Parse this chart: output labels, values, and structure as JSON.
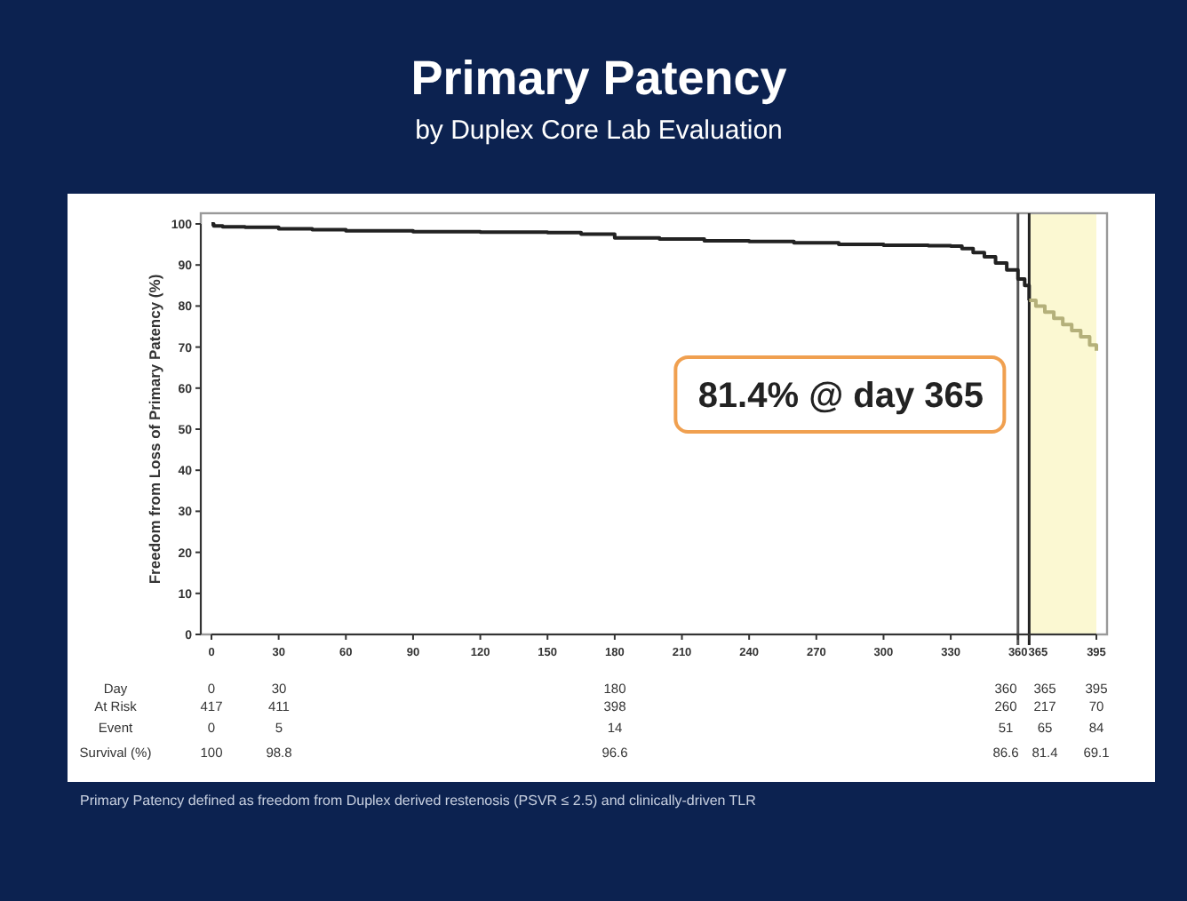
{
  "chart_data": {
    "type": "step",
    "title": "Primary Patency",
    "subtitle": "by Duplex Core Lab Evaluation",
    "ylabel": "Freedom from Loss of Primary Patency (%)",
    "xlim": [
      0,
      395
    ],
    "ylim": [
      0,
      100
    ],
    "xticks": [
      0,
      30,
      60,
      90,
      120,
      150,
      180,
      210,
      240,
      270,
      300,
      330,
      360,
      365,
      395
    ],
    "yticks": [
      0,
      10,
      20,
      30,
      40,
      50,
      60,
      70,
      80,
      90,
      100
    ],
    "grid": false,
    "marker": "none",
    "line_style": "solid",
    "series": [
      {
        "color": "#222222",
        "x": [
          0,
          1,
          5,
          15,
          30,
          45,
          60,
          90,
          120,
          150,
          165,
          180,
          200,
          220,
          240,
          260,
          280,
          300,
          320,
          330,
          335,
          340,
          345,
          350,
          355,
          360,
          363,
          365
        ],
        "values": [
          100,
          99.5,
          99.3,
          99.2,
          98.8,
          98.6,
          98.3,
          98.1,
          98,
          97.9,
          97.5,
          96.6,
          96.3,
          95.9,
          95.7,
          95.4,
          95,
          94.8,
          94.7,
          94.6,
          94,
          93,
          92,
          90.5,
          88.8,
          86.6,
          85,
          81.4
        ]
      },
      {
        "color": "#b4b07a",
        "x": [
          365,
          368,
          372,
          376,
          380,
          384,
          388,
          392,
          395
        ],
        "values": [
          81.4,
          80,
          78.5,
          77,
          75.5,
          74,
          72.5,
          70.5,
          69.1
        ]
      }
    ],
    "ref_lines": [
      {
        "axis": "x",
        "value": 360,
        "color": "#555555"
      },
      {
        "axis": "x",
        "value": 365,
        "color": "#222222"
      }
    ],
    "bands": [
      {
        "axis": "x",
        "from": 365,
        "to": 395,
        "color": "#fbf8d2"
      }
    ],
    "annotations": [
      {
        "text": "81.4% @ day 365",
        "x": 365,
        "y": 81.4
      },
      "Day",
      "0",
      "30",
      "180",
      "360",
      "365",
      "395",
      "At Risk",
      "417",
      "411",
      "398",
      "260",
      "217",
      "70",
      "Event",
      "0",
      "5",
      "14",
      "51",
      "65",
      "84",
      "Survival (%)",
      "100",
      "98.8",
      "96.6",
      "86.6",
      "81.4",
      "69.1",
      "Primary Patency defined as freedom from Duplex derived restenosis (PSVR ≤ 2.5) and clinically-driven TLR"
    ]
  }
}
